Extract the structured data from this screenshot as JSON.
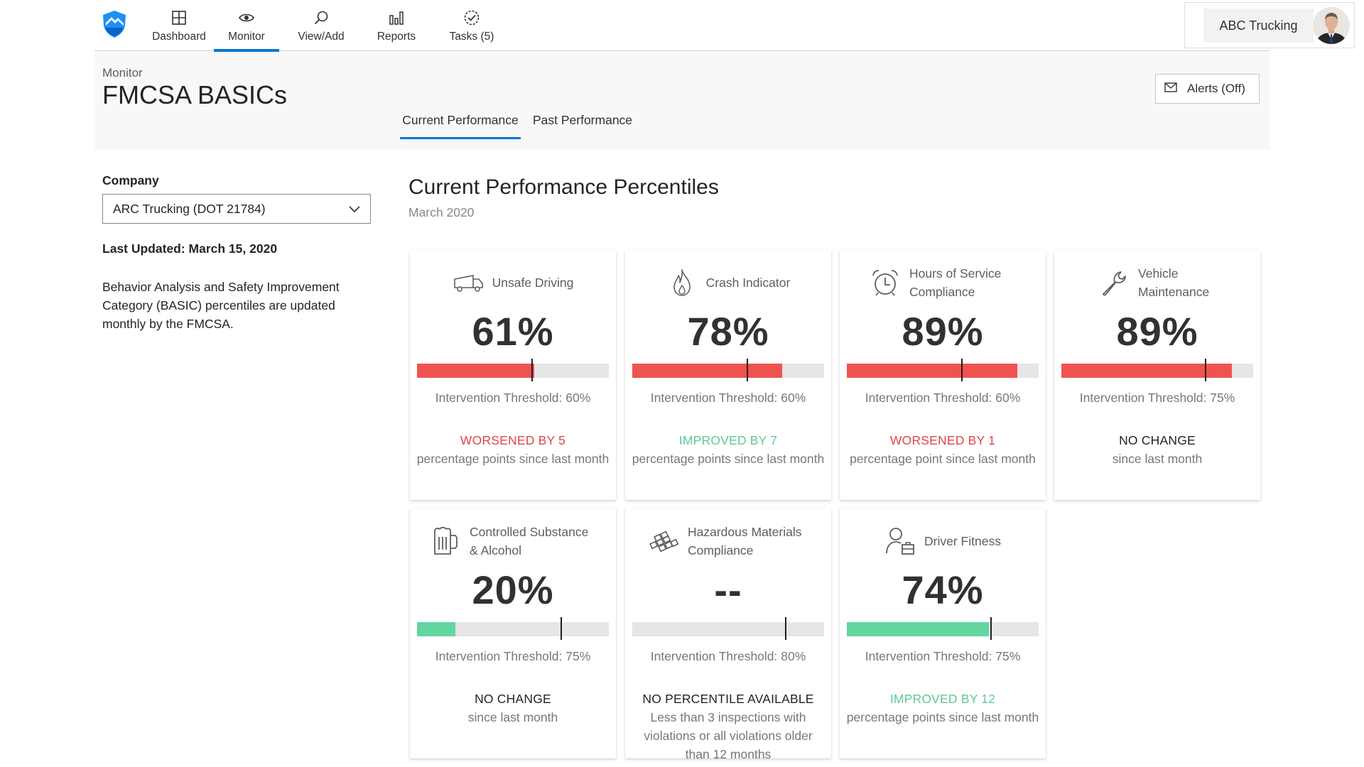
{
  "nav": {
    "items": [
      {
        "label": "Dashboard",
        "icon": "dashboard-grid-icon"
      },
      {
        "label": "Monitor",
        "icon": "eye-icon",
        "active": true
      },
      {
        "label": "View/Add",
        "icon": "search-icon"
      },
      {
        "label": "Reports",
        "icon": "bar-chart-icon"
      },
      {
        "label": "Tasks (5)",
        "icon": "tasks-check-icon"
      }
    ]
  },
  "account": {
    "name": "ABC Trucking"
  },
  "header": {
    "breadcrumb": "Monitor",
    "title": "FMCSA BASICs",
    "alerts_label": "Alerts (Off)",
    "tabs": [
      {
        "label": "Current Performance",
        "active": true
      },
      {
        "label": "Past Performance",
        "active": false
      }
    ]
  },
  "sidebar": {
    "company_label": "Company",
    "company_value": "ARC Trucking (DOT 21784)",
    "last_updated": "Last Updated: March 15, 2020",
    "description": "Behavior Analysis and Safety Improvement Category (BASIC) percentiles are updated monthly by the FMCSA."
  },
  "main": {
    "title": "Current Performance Percentiles",
    "subtitle": "March 2020"
  },
  "colors": {
    "accent": "#0078d4",
    "worse": "#e0454a",
    "better": "#5fc996",
    "bar_red": "#ef5350",
    "bar_green": "#63d6a0",
    "track": "#e6e6e6"
  },
  "cards": [
    {
      "name": "Unsafe Driving",
      "icon": "truck-icon",
      "value": "61%",
      "percentile": 61,
      "threshold_pct": 60,
      "bar_color": "red",
      "threshold_text": "Intervention Threshold: 60%",
      "change": "WORSENED BY 5",
      "change_tone": "worse",
      "detail": "percentage points since last month"
    },
    {
      "name": "Crash Indicator",
      "icon": "flame-icon",
      "value": "78%",
      "percentile": 78,
      "threshold_pct": 60,
      "bar_color": "red",
      "threshold_text": "Intervention Threshold: 60%",
      "change": "IMPROVED BY 7",
      "change_tone": "better",
      "detail": "percentage points since last month"
    },
    {
      "name": "Hours of Service Compliance",
      "icon": "alarm-clock-icon",
      "value": "89%",
      "percentile": 89,
      "threshold_pct": 60,
      "bar_color": "red",
      "threshold_text": "Intervention Threshold: 60%",
      "change": "WORSENED BY 1",
      "change_tone": "worse",
      "detail": "percentage point since last month"
    },
    {
      "name": "Vehicle Maintenance",
      "icon": "wrench-icon",
      "value": "89%",
      "percentile": 89,
      "threshold_pct": 75,
      "bar_color": "red",
      "threshold_text": "Intervention Threshold: 75%",
      "change": "NO CHANGE",
      "change_tone": "neutral",
      "detail": "since last month"
    },
    {
      "name": "Controlled Substance & Alcohol",
      "icon": "beer-mug-icon",
      "value": "20%",
      "percentile": 20,
      "threshold_pct": 75,
      "bar_color": "green",
      "threshold_text": "Intervention Threshold: 75%",
      "change": "NO CHANGE",
      "change_tone": "neutral",
      "detail": "since last month"
    },
    {
      "name": "Hazardous Materials Compliance",
      "icon": "hazmat-barrels-icon",
      "value": "--",
      "percentile": 0,
      "threshold_pct": 80,
      "bar_color": "none",
      "threshold_text": "Intervention Threshold: 80%",
      "change": "NO PERCENTILE AVAILABLE",
      "change_tone": "neutral",
      "detail": "Less than 3 inspections with violations or all violations older than 12 months"
    },
    {
      "name": "Driver Fitness",
      "icon": "driver-badge-icon",
      "value": "74%",
      "percentile": 74,
      "threshold_pct": 75,
      "bar_color": "green",
      "threshold_text": "Intervention Threshold: 75%",
      "change": "IMPROVED BY 12",
      "change_tone": "better",
      "detail": "percentage points since last month"
    }
  ]
}
